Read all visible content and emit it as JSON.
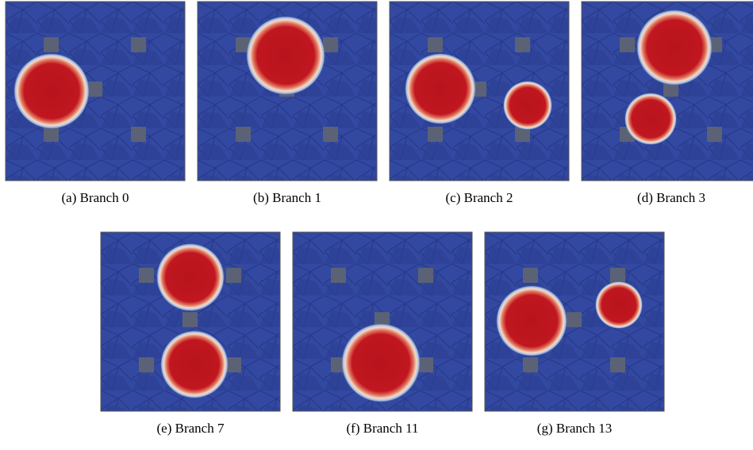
{
  "figure": {
    "panels": [
      {
        "caption": "(a) Branch 0"
      },
      {
        "caption": "(b) Branch 1"
      },
      {
        "caption": "(c) Branch 2"
      },
      {
        "caption": "(d) Branch 3"
      },
      {
        "caption": "(e) Branch 7"
      },
      {
        "caption": "(f) Branch 11"
      },
      {
        "caption": "(g) Branch 13"
      }
    ]
  }
}
